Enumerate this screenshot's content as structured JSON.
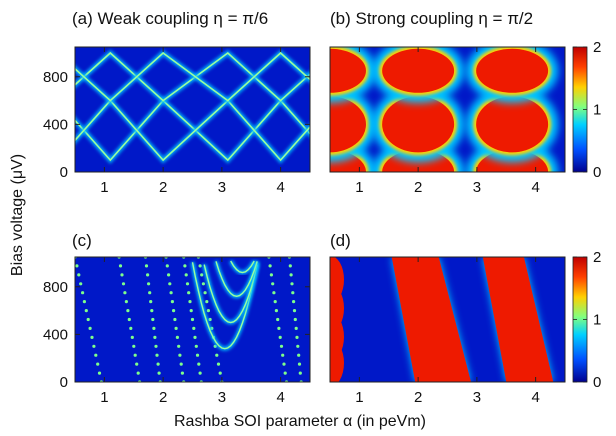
{
  "figure": {
    "ylabel": "Bias voltage (μV)",
    "xlabel": "Rashba SOI parameter α (in peVm)"
  },
  "colorbar": {
    "ticks": [
      "0",
      "1",
      "2"
    ],
    "colors": [
      "#00008f",
      "#0050ff",
      "#00d0ff",
      "#80ff80",
      "#ffd000",
      "#ff4000",
      "#c00000"
    ]
  },
  "chart_data": [
    {
      "type": "heatmap",
      "title": "(a) Weak coupling η = π/6",
      "x_ticks": [
        "1",
        "2",
        "3",
        "4"
      ],
      "y_ticks": [
        "0",
        "400",
        "800"
      ],
      "x_range": [
        0.5,
        4.5
      ],
      "y_range": [
        0,
        1050
      ],
      "z_range": [
        0,
        2
      ],
      "pattern": "diamond lattice of narrow bright lines on dark background",
      "crossings_x": [
        1.1,
        2.0,
        3.1,
        4.0
      ],
      "crossing_y": [
        100,
        600,
        1000
      ]
    },
    {
      "type": "heatmap",
      "title": "(b) Strong coupling η = π/2",
      "x_ticks": [
        "1",
        "2",
        "3",
        "4"
      ],
      "y_ticks": [],
      "x_range": [
        0.5,
        4.5
      ],
      "y_range": [
        0,
        1050
      ],
      "z_range": [
        0,
        2
      ],
      "pattern": "broad high-conductance circular lobes",
      "lobe_centers_x": [
        0.5,
        2.0,
        3.6
      ],
      "lobe_centers_y": [
        0,
        400,
        850
      ]
    },
    {
      "type": "heatmap",
      "title": "(c)",
      "x_ticks": [
        "1",
        "2",
        "3",
        "4"
      ],
      "y_ticks": [
        "0",
        "400",
        "800"
      ],
      "x_range": [
        0.5,
        4.5
      ],
      "y_range": [
        0,
        1050
      ],
      "z_range": [
        0,
        2
      ],
      "pattern": "dense dotted diagonal lines and parabolic arcs"
    },
    {
      "type": "heatmap",
      "title": "(d)",
      "x_ticks": [
        "1",
        "2",
        "3",
        "4"
      ],
      "y_ticks": [],
      "x_range": [
        0.5,
        4.5
      ],
      "y_range": [
        0,
        1050
      ],
      "z_range": [
        0,
        2
      ],
      "pattern": "broad tilted red stripes with lobes at left edge"
    }
  ]
}
